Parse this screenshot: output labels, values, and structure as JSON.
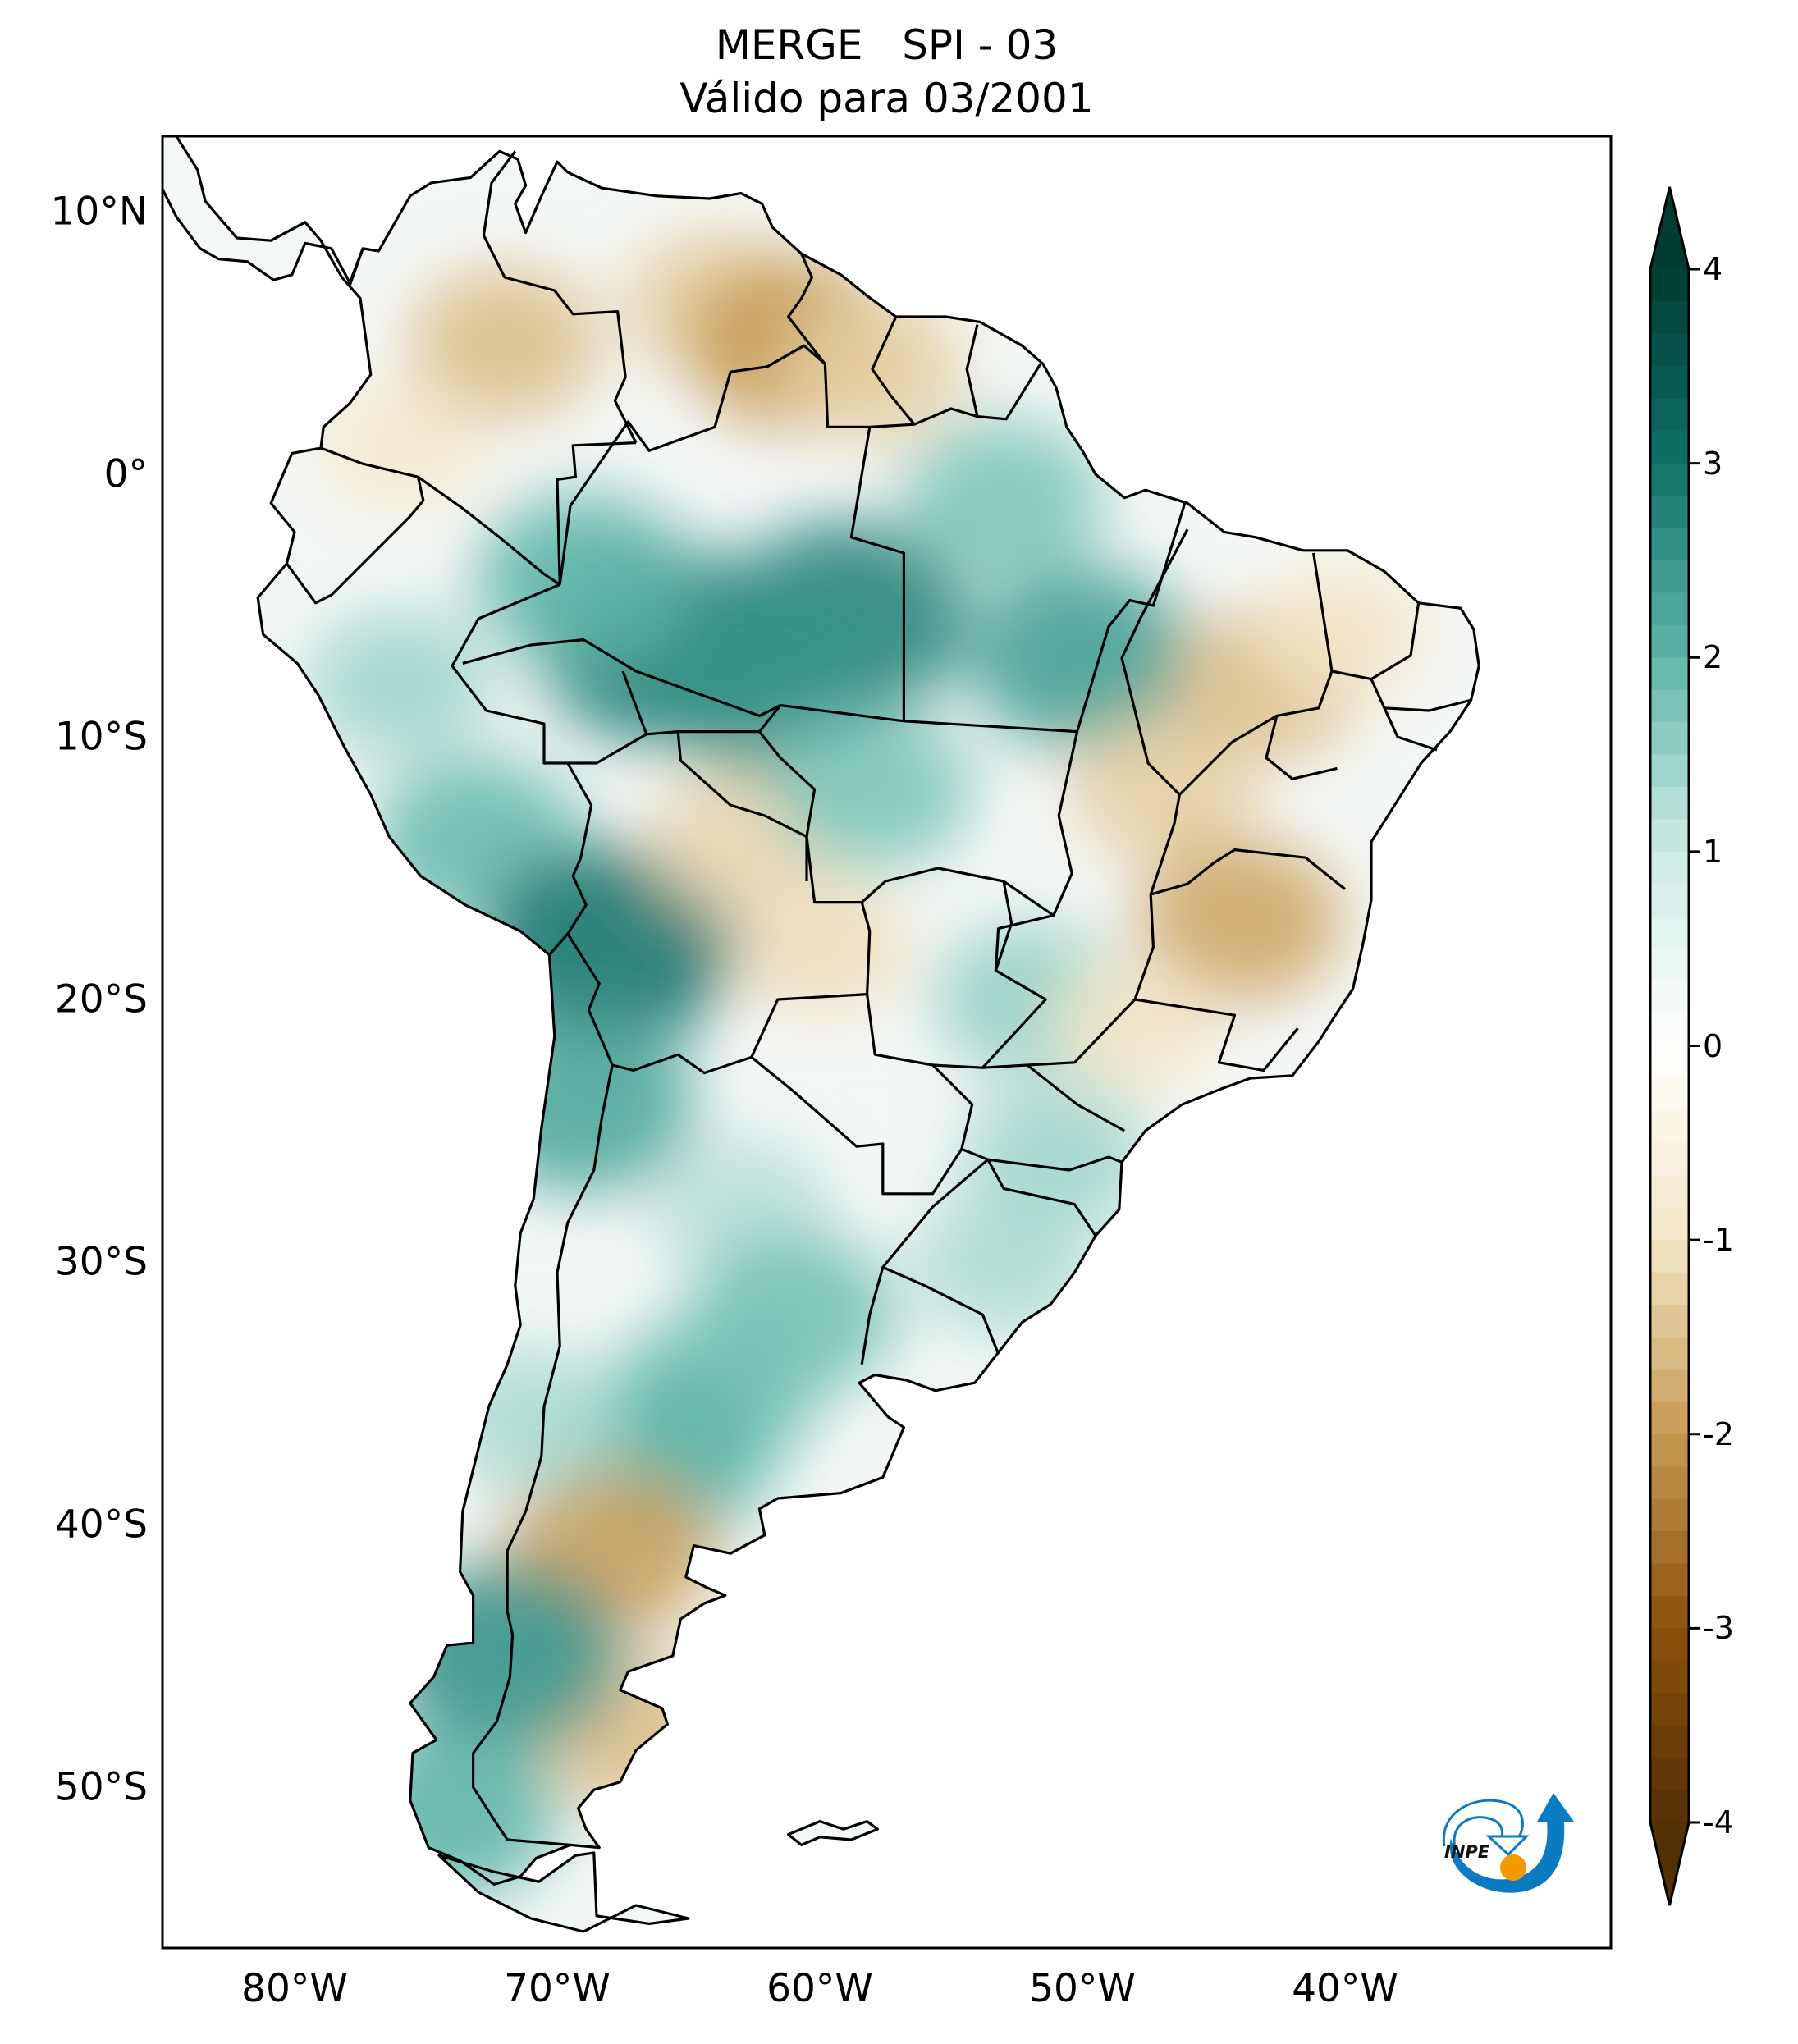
{
  "chart_data": {
    "type": "heatmap",
    "title": "MERGE   SPI - 03",
    "subtitle": "Válido para 03/2001",
    "variable": "SPI - 03",
    "xlabel": "",
    "ylabel": "",
    "xlim": [
      -85,
      -30
    ],
    "ylim": [
      -56,
      13
    ],
    "x_ticks": [
      {
        "value": -80,
        "label": "80°W"
      },
      {
        "value": -70,
        "label": "70°W"
      },
      {
        "value": -60,
        "label": "60°W"
      },
      {
        "value": -50,
        "label": "50°W"
      },
      {
        "value": -40,
        "label": "40°W"
      }
    ],
    "y_ticks": [
      {
        "value": 10,
        "label": "10°N"
      },
      {
        "value": 0,
        "label": "0°"
      },
      {
        "value": -10,
        "label": "10°S"
      },
      {
        "value": -20,
        "label": "20°S"
      },
      {
        "value": -30,
        "label": "30°S"
      },
      {
        "value": -40,
        "label": "40°S"
      },
      {
        "value": -50,
        "label": "50°S"
      }
    ],
    "colorbar": {
      "range": [
        -4,
        4
      ],
      "extend": "both",
      "placement": "right",
      "ticks": [
        {
          "value": 4,
          "label": "4"
        },
        {
          "value": 3,
          "label": "3"
        },
        {
          "value": 2,
          "label": "2"
        },
        {
          "value": 1,
          "label": "1"
        },
        {
          "value": 0,
          "label": "0"
        },
        {
          "value": -1,
          "label": "-1"
        },
        {
          "value": -2,
          "label": "-2"
        },
        {
          "value": -3,
          "label": "-3"
        },
        {
          "value": -4,
          "label": "-4"
        }
      ],
      "colors": {
        "-4": "#543005",
        "-3": "#8c510a",
        "-2": "#c69a52",
        "-1": "#f3e6c6",
        "0": "#ffffff",
        "1": "#cdebe5",
        "2": "#5fb6a8",
        "3": "#0f716a",
        "4": "#003c30"
      }
    },
    "anomaly_regions": [
      {
        "lon": -72,
        "lat": 5,
        "value": -1.5
      },
      {
        "lon": -64,
        "lat": 6.5,
        "value": -1.3
      },
      {
        "lon": -61,
        "lat": 5,
        "value": -2.0
      },
      {
        "lon": -58,
        "lat": 4,
        "value": -1.3
      },
      {
        "lon": -76,
        "lat": 1,
        "value": -0.9
      },
      {
        "lon": -66,
        "lat": -6.5,
        "value": 2.8
      },
      {
        "lon": -59,
        "lat": -5.5,
        "value": 2.7
      },
      {
        "lon": -69,
        "lat": -4,
        "value": 2.0
      },
      {
        "lon": -62,
        "lat": -8,
        "value": 2.5
      },
      {
        "lon": -53,
        "lat": -1,
        "value": 1.7
      },
      {
        "lon": -50,
        "lat": -7,
        "value": 2.3
      },
      {
        "lon": -76,
        "lat": -8,
        "value": 1.4
      },
      {
        "lon": -73,
        "lat": -14,
        "value": 1.9
      },
      {
        "lon": -68,
        "lat": -18,
        "value": 2.9
      },
      {
        "lon": -69,
        "lat": -24,
        "value": 2.2
      },
      {
        "lon": -63,
        "lat": -14,
        "value": -1.2
      },
      {
        "lon": -60,
        "lat": -18,
        "value": -1.1
      },
      {
        "lon": -58,
        "lat": -12,
        "value": 1.7
      },
      {
        "lon": -52,
        "lat": -20,
        "value": 1.5
      },
      {
        "lon": -47,
        "lat": -12,
        "value": -1.3
      },
      {
        "lon": -43,
        "lat": -8,
        "value": -1.5
      },
      {
        "lon": -44,
        "lat": -17,
        "value": -1.8
      },
      {
        "lon": -40,
        "lat": -6,
        "value": -1.0
      },
      {
        "lon": -48,
        "lat": -21,
        "value": -1.0
      },
      {
        "lon": -51,
        "lat": -26,
        "value": 1.4
      },
      {
        "lon": -53,
        "lat": -30,
        "value": 1.3
      },
      {
        "lon": -63,
        "lat": -28,
        "value": 1.2
      },
      {
        "lon": -61,
        "lat": -32,
        "value": 1.8
      },
      {
        "lon": -64,
        "lat": -35,
        "value": 1.8
      },
      {
        "lon": -66,
        "lat": -37.5,
        "value": 2.0
      },
      {
        "lon": -68,
        "lat": -41,
        "value": -1.9
      },
      {
        "lon": -67,
        "lat": -48,
        "value": -1.5
      },
      {
        "lon": -72,
        "lat": -45,
        "value": 2.5
      },
      {
        "lon": -71,
        "lat": -36,
        "value": 1.3
      },
      {
        "lon": -74,
        "lat": -51,
        "value": 2.0
      }
    ]
  },
  "logo": {
    "text": "INPE",
    "blue": "#0a7bc1",
    "orange": "#f29a00"
  }
}
